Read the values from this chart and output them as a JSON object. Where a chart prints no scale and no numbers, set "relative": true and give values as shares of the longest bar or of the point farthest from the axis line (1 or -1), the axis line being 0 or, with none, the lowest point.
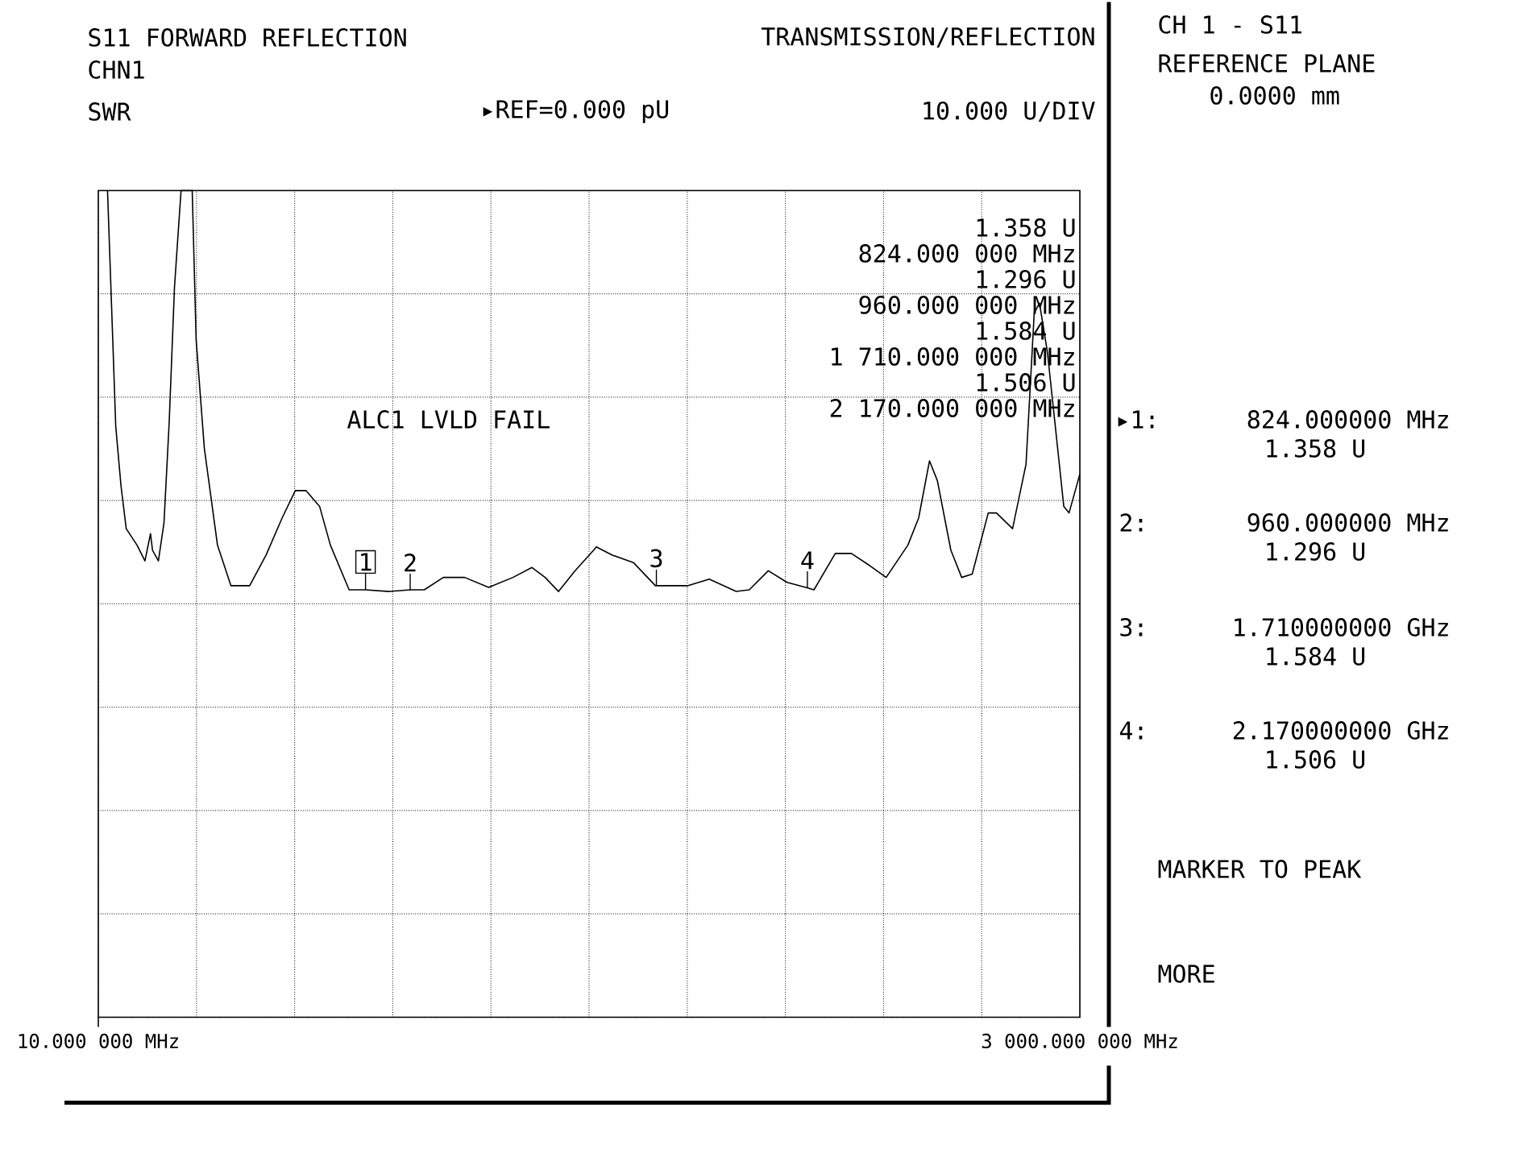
{
  "chart_data": {
    "type": "line",
    "title": "S11 FORWARD REFLECTION",
    "subtitle": "CHN1",
    "ylabel": "SWR",
    "relative": true,
    "color": "#000000",
    "grid": true,
    "xlim": [
      10,
      3000
    ],
    "xticks": [
      {
        "value": 10,
        "label": "10.000 000 MHz"
      },
      {
        "value": 309,
        "label": null
      },
      {
        "value": 608,
        "label": null
      },
      {
        "value": 907,
        "label": null
      },
      {
        "value": 1206,
        "label": null
      },
      {
        "value": 1505,
        "label": null
      },
      {
        "value": 1804,
        "label": null
      },
      {
        "value": 2103,
        "label": null
      },
      {
        "value": 2402,
        "label": null
      },
      {
        "value": 2701,
        "label": null
      },
      {
        "value": 3000,
        "label": "3 000.000 000 MHz"
      }
    ],
    "x": [
      38,
      54,
      63,
      79,
      95,
      128,
      152,
      169,
      175,
      193,
      210,
      226,
      242,
      262,
      296,
      308,
      333,
      373,
      414,
      471,
      521,
      570,
      610,
      643,
      684,
      717,
      774,
      823,
      897,
      962,
      1003,
      1061,
      1126,
      1199,
      1273,
      1331,
      1371,
      1412,
      1462,
      1519,
      1527,
      1576,
      1640,
      1707,
      1805,
      1871,
      1953,
      1993,
      2051,
      2108,
      2165,
      2190,
      2255,
      2304,
      2361,
      2410,
      2476,
      2509,
      2542,
      2566,
      2607,
      2640,
      2672,
      2721,
      2746,
      2795,
      2836,
      2861,
      2877,
      2901,
      2934,
      2951,
      2967,
      3000
    ],
    "values": [
      1,
      0.819,
      0.715,
      0.643,
      0.591,
      0.571,
      0.552,
      0.585,
      0.565,
      0.552,
      0.598,
      0.721,
      0.883,
      1,
      1,
      0.819,
      0.688,
      0.571,
      0.522,
      0.522,
      0.559,
      0.604,
      0.637,
      0.637,
      0.618,
      0.571,
      0.517,
      0.517,
      0.515,
      0.517,
      0.517,
      0.532,
      0.532,
      0.52,
      0.532,
      0.544,
      0.532,
      0.515,
      0.54,
      0.565,
      0.569,
      0.559,
      0.55,
      0.522,
      0.522,
      0.53,
      0.515,
      0.517,
      0.54,
      0.526,
      0.52,
      0.517,
      0.561,
      0.561,
      0.546,
      0.532,
      0.571,
      0.604,
      0.673,
      0.649,
      0.565,
      0.532,
      0.536,
      0.61,
      0.61,
      0.591,
      0.669,
      0.852,
      0.864,
      0.805,
      0.682,
      0.618,
      0.61,
      0.657
    ],
    "annotations": [
      "TRANSMISSION/REFLECTION",
      "▸REF=0.000 pU",
      "10.000 U/DIV",
      "1.358 U",
      "824.000 000 MHz",
      "1.296 U",
      "960.000 000 MHz",
      "1.584 U",
      "1 710.000 000 MHz",
      "1.506 U",
      "2 170.000 000 MHz",
      "ALC1 LVLD FAIL",
      "CH 1 - S11",
      "REFERENCE PLANE",
      "0.0000 mm",
      "▸1:",
      "824.000000 MHz",
      "1.358 U",
      "2:",
      "960.000000 MHz",
      "1.296 U",
      "3:",
      "1.710000000 GHz",
      "1.584 U",
      "4:",
      "2.170000000 GHz",
      "1.506 U",
      "MARKER TO PEAK",
      "MORE",
      {
        "text": "1",
        "x": 824,
        "y": 0.517
      },
      {
        "text": "2",
        "x": 960,
        "y": 0.517
      },
      {
        "text": "3",
        "x": 1710,
        "y": 0.522
      },
      {
        "text": "4",
        "x": 2170,
        "y": 0.52
      }
    ]
  }
}
